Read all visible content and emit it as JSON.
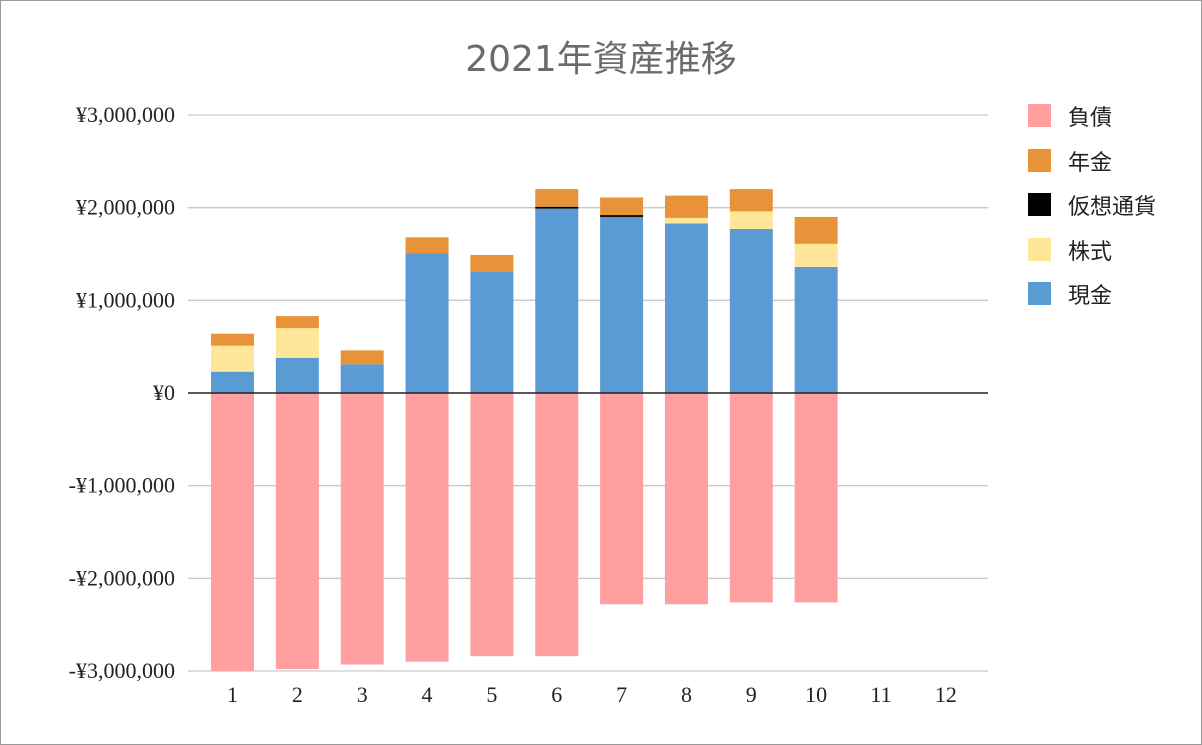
{
  "chart_data": {
    "type": "bar",
    "stacked": true,
    "title": "2021年資産推移",
    "xlabel": "",
    "ylabel": "",
    "categories": [
      "1",
      "2",
      "3",
      "4",
      "5",
      "6",
      "7",
      "8",
      "9",
      "10",
      "11",
      "12"
    ],
    "ylim": [
      -3000000,
      3000000
    ],
    "yticks": [
      3000000,
      2000000,
      1000000,
      0,
      -1000000,
      -2000000,
      -3000000
    ],
    "ytick_labels": [
      "¥3,000,000",
      "¥2,000,000",
      "¥1,000,000",
      "¥0",
      "-¥1,000,000",
      "-¥2,000,000",
      "-¥3,000,000"
    ],
    "grid": true,
    "legend_position": "right",
    "series": [
      {
        "name": "現金",
        "color": "#5b9bd5",
        "values": [
          230000,
          380000,
          310000,
          1510000,
          1310000,
          1990000,
          1900000,
          1830000,
          1770000,
          1360000,
          null,
          null
        ]
      },
      {
        "name": "株式",
        "color": "#ffe699",
        "values": [
          280000,
          320000,
          0,
          0,
          0,
          0,
          0,
          60000,
          190000,
          250000,
          null,
          null
        ]
      },
      {
        "name": "仮想通貨",
        "color": "#000000",
        "values": [
          0,
          0,
          0,
          0,
          0,
          20000,
          20000,
          0,
          0,
          0,
          null,
          null
        ]
      },
      {
        "name": "年金",
        "color": "#e8923a",
        "values": [
          130000,
          130000,
          150000,
          170000,
          180000,
          190000,
          190000,
          240000,
          240000,
          290000,
          null,
          null
        ]
      },
      {
        "name": "負債",
        "color": "#ff9f9f",
        "values": [
          -3000000,
          -2980000,
          -2930000,
          -2900000,
          -2840000,
          -2840000,
          -2280000,
          -2280000,
          -2260000,
          -2260000,
          null,
          null
        ]
      }
    ],
    "legend_order": [
      "負債",
      "年金",
      "仮想通貨",
      "株式",
      "現金"
    ]
  }
}
